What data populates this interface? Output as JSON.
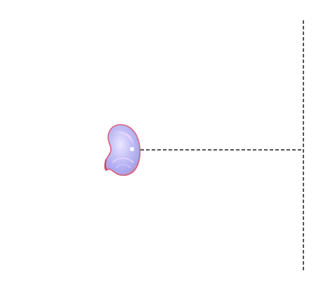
{
  "scene": {
    "background_color": "#ffffff",
    "guide_color": "#555555",
    "object": {
      "kind": "kidney-shaped 3D rendered object",
      "fill_color": "#b9b6f2",
      "highlight_color": "#eae6ff",
      "rim_color": "#d9607a"
    },
    "guides": [
      {
        "label_hidden": true,
        "orientation": "horizontal",
        "style": "dashed"
      },
      {
        "label_hidden": true,
        "orientation": "vertical",
        "style": "dashed"
      }
    ]
  }
}
